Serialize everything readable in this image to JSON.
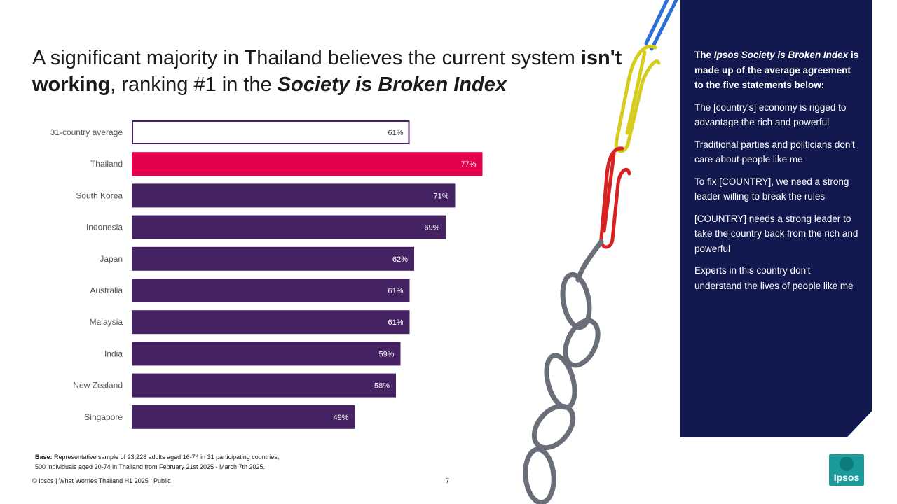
{
  "title": {
    "part1": "A significant majority in Thailand believes the current system ",
    "bold": "isn't working",
    "part2": ", ranking #1 in the ",
    "italic": "Society is Broken Index"
  },
  "chart_data": {
    "type": "bar",
    "orientation": "horizontal",
    "categories": [
      "31-country average",
      "Thailand",
      "South Korea",
      "Indonesia",
      "Japan",
      "Australia",
      "Malaysia",
      "India",
      "New Zealand",
      "Singapore"
    ],
    "values": [
      61,
      77,
      71,
      69,
      62,
      61,
      61,
      59,
      58,
      49
    ],
    "labels": [
      "61%",
      "77%",
      "71%",
      "69%",
      "62%",
      "61%",
      "61%",
      "59%",
      "58%",
      "49%"
    ],
    "xlim": [
      0,
      100
    ],
    "colors": {
      "average_fill": "#ffffff",
      "average_stroke": "#452363",
      "highlight": "#e4004e",
      "default": "#452363"
    }
  },
  "footnote": {
    "base_label": "Base:",
    "line1": " Representative sample of 23,228 adults aged 16-74 in 31 participating countries,",
    "line2": "500 individuals aged 20-74 in Thailand from February 21st 2025 - March 7th 2025."
  },
  "footer": {
    "text": "© Ipsos | What Worries Thailand H1 2025 | Public",
    "page": "7"
  },
  "panel": {
    "intro_a": "The ",
    "intro_b": "Ipsos Society is Broken Index",
    "intro_c": " is made up of the average agreement to the five statements below:",
    "items": [
      "The [country's] economy is rigged to advantage the rich and powerful",
      "Traditional parties and politicians don't care about people like me",
      "To fix [COUNTRY], we need a strong leader willing to break the rules",
      "[COUNTRY] needs a strong leader to take the country back from the rich and powerful",
      "Experts in this country don't understand the lives of people like me"
    ],
    "color": "#11194f"
  },
  "logo": {
    "text": "Ipsos",
    "color": "#1a9a9a"
  }
}
